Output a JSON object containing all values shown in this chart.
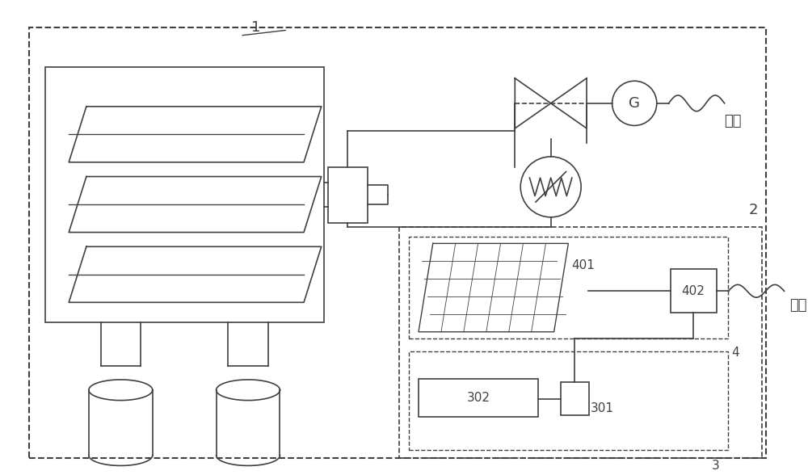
{
  "bg_color": "#ffffff",
  "line_color": "#404040",
  "dashed_color": "#404040",
  "label_1": "1",
  "label_2": "2",
  "label_3": "3",
  "label_4": "4",
  "label_401": "401",
  "label_402": "402",
  "label_301": "301",
  "label_302": "302",
  "label_G": "G",
  "label_grid": "并网",
  "label_load": "负载",
  "font_size_label": 13,
  "font_size_num": 11
}
